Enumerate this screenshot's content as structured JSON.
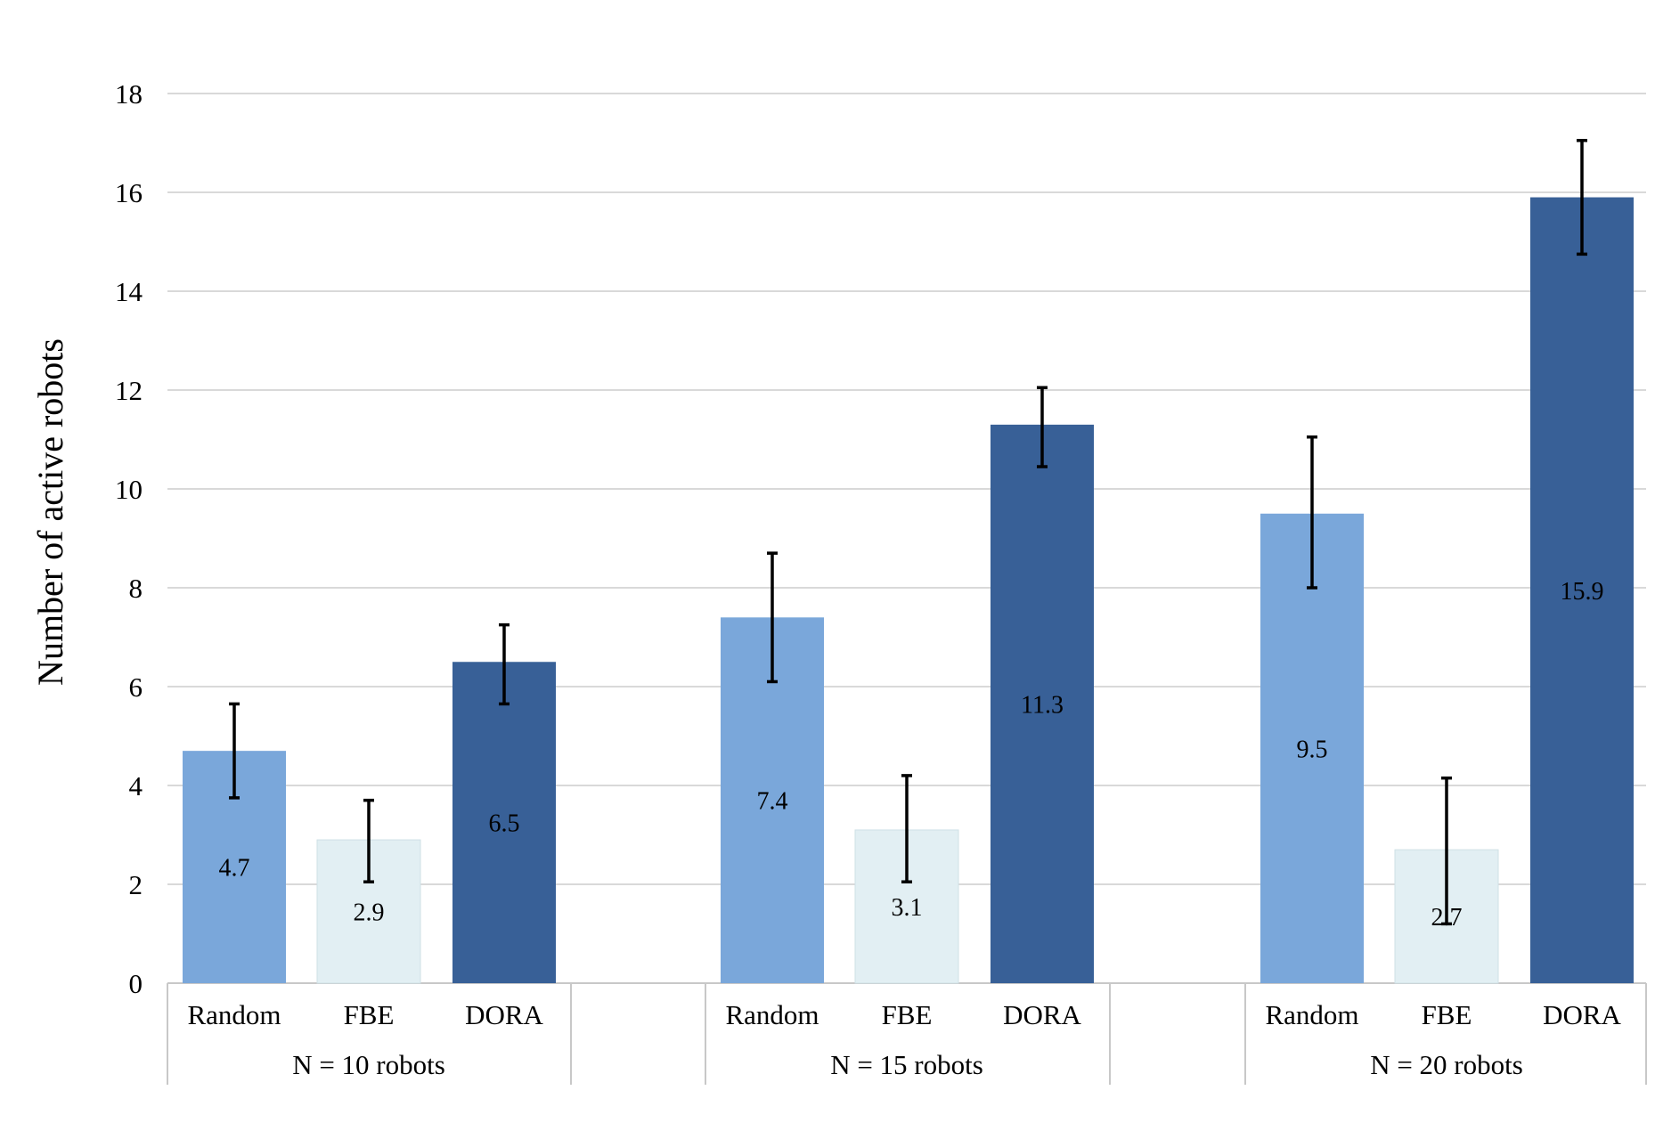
{
  "chart_data": {
    "type": "bar",
    "ylabel": "Number of active robots",
    "ylim": [
      0,
      18
    ],
    "yticks": [
      0,
      2,
      4,
      6,
      8,
      10,
      12,
      14,
      16,
      18
    ],
    "grid": true,
    "groups": [
      {
        "label": "N = 10 robots",
        "bars": [
          {
            "category": "Random",
            "value": 4.7,
            "value_label": "4.7",
            "err_low": 3.75,
            "err_high": 5.65
          },
          {
            "category": "FBE",
            "value": 2.9,
            "value_label": "2.9",
            "err_low": 2.05,
            "err_high": 3.7
          },
          {
            "category": "DORA",
            "value": 6.5,
            "value_label": "6.5",
            "err_low": 5.65,
            "err_high": 7.25
          }
        ]
      },
      {
        "label": "N = 15 robots",
        "bars": [
          {
            "category": "Random",
            "value": 7.4,
            "value_label": "7.4",
            "err_low": 6.1,
            "err_high": 8.7
          },
          {
            "category": "FBE",
            "value": 3.1,
            "value_label": "3.1",
            "err_low": 2.05,
            "err_high": 4.2
          },
          {
            "category": "DORA",
            "value": 11.3,
            "value_label": "11.3",
            "err_low": 10.45,
            "err_high": 12.05
          }
        ]
      },
      {
        "label": "N = 20 robots",
        "bars": [
          {
            "category": "Random",
            "value": 9.5,
            "value_label": "9.5",
            "err_low": 8.0,
            "err_high": 11.05
          },
          {
            "category": "FBE",
            "value": 2.7,
            "value_label": "2.7",
            "err_low": 1.2,
            "err_high": 4.15
          },
          {
            "category": "DORA",
            "value": 15.9,
            "value_label": "15.9",
            "err_low": 14.75,
            "err_high": 17.05
          }
        ]
      }
    ],
    "colors": {
      "Random": "#7aa7da",
      "FBE": "#e2eff3",
      "DORA": "#386097"
    }
  }
}
